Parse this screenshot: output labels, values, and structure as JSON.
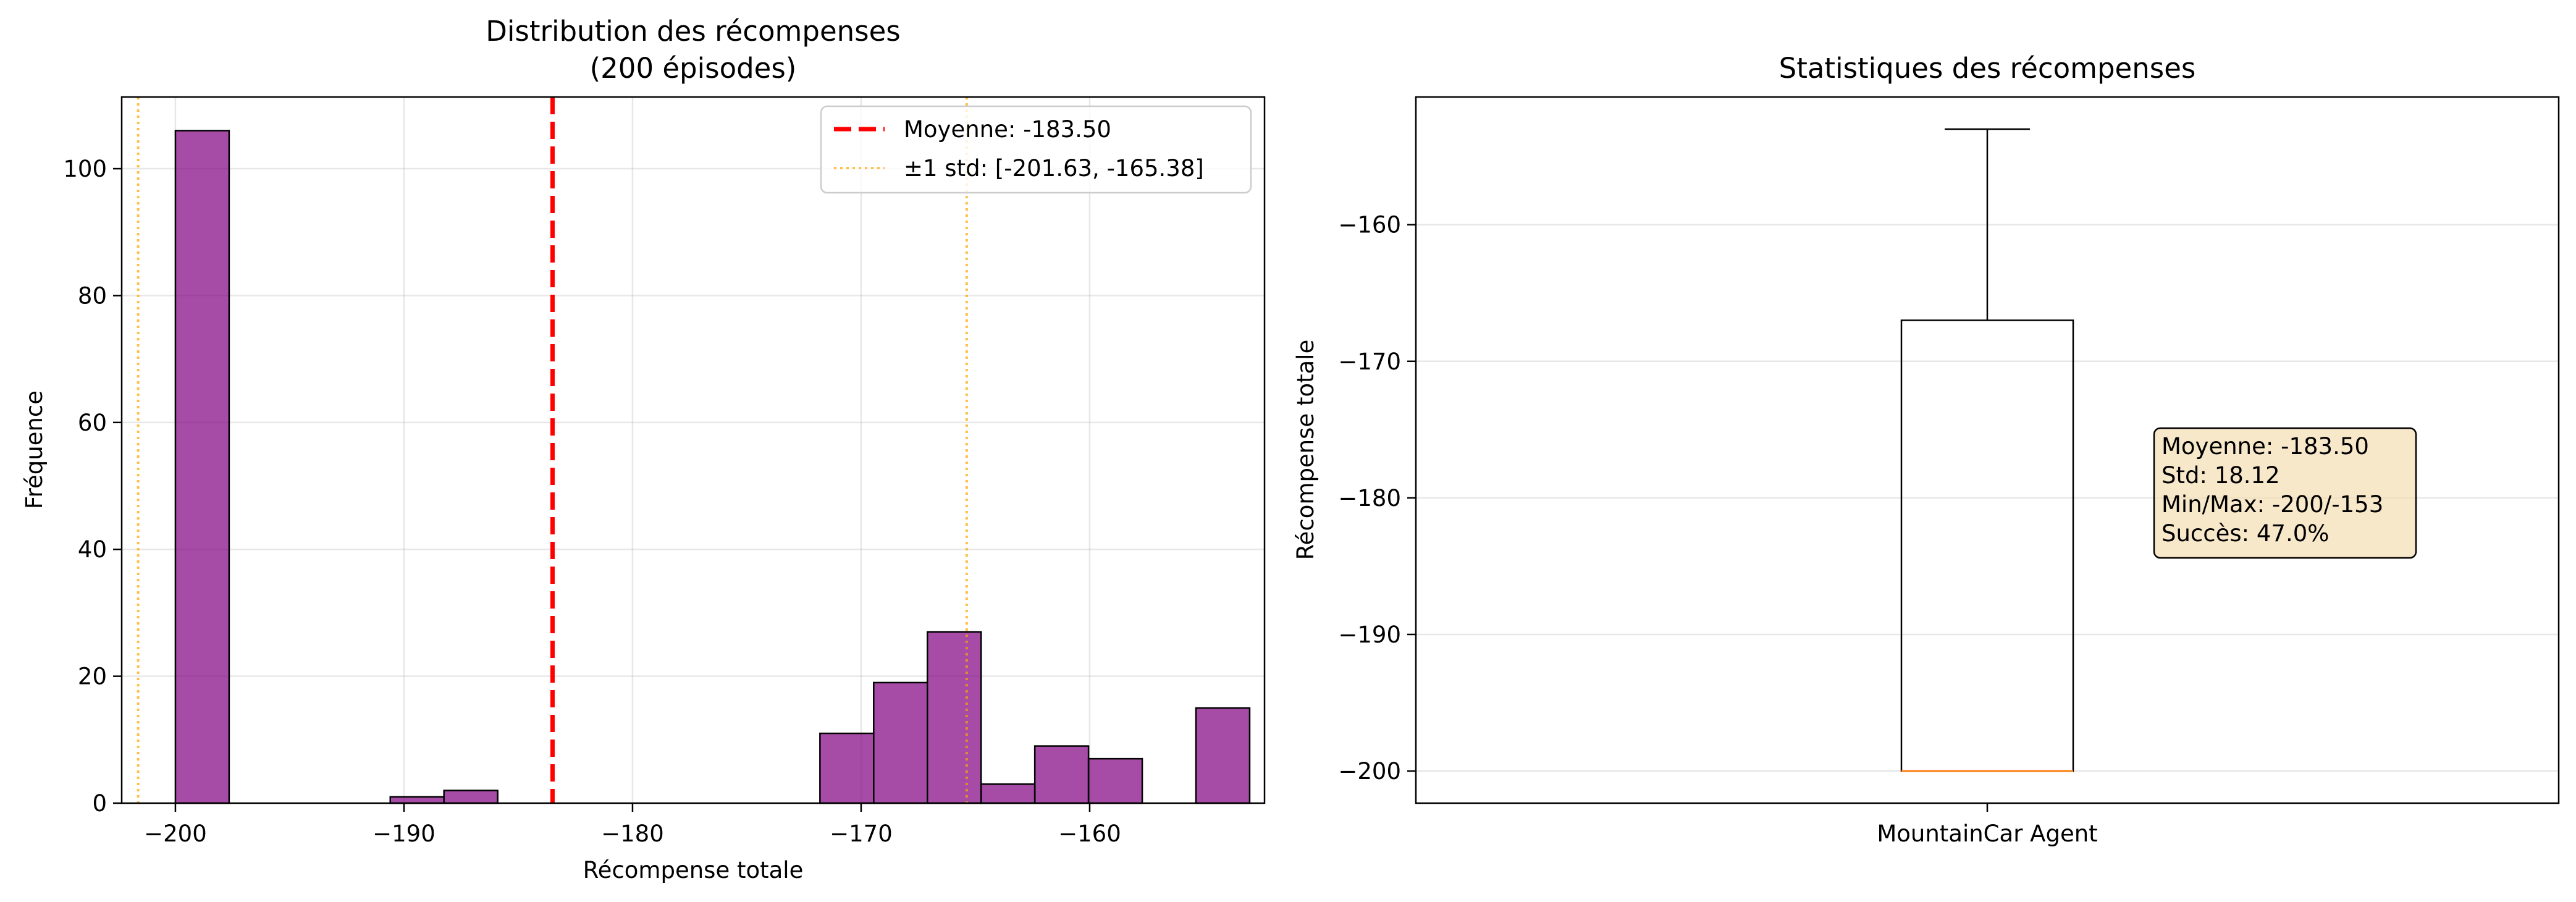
{
  "chart_data": [
    {
      "type": "bar",
      "subtype": "histogram",
      "title_line1": "Distribution des récompenses",
      "title_line2": "(200 épisodes)",
      "xlabel": "Récompense totale",
      "ylabel": "Fréquence",
      "xlim": [
        -202.35,
        -152.35
      ],
      "ylim": [
        0,
        111.3
      ],
      "xticks": [
        -200,
        -190,
        -180,
        -170,
        -160
      ],
      "xtick_labels": [
        "−200",
        "−190",
        "−180",
        "−170",
        "−160"
      ],
      "yticks": [
        0,
        20,
        40,
        60,
        80,
        100
      ],
      "ytick_labels": [
        "0",
        "20",
        "40",
        "60",
        "80",
        "100"
      ],
      "grid": true,
      "legend_position": "top-right",
      "bar_color": "#800080",
      "bins": [
        {
          "x0": -200.0,
          "x1": -197.65,
          "count": 106
        },
        {
          "x0": -197.65,
          "x1": -195.3,
          "count": 0
        },
        {
          "x0": -195.3,
          "x1": -192.95,
          "count": 0
        },
        {
          "x0": -192.95,
          "x1": -190.6,
          "count": 0
        },
        {
          "x0": -190.6,
          "x1": -188.25,
          "count": 1
        },
        {
          "x0": -188.25,
          "x1": -185.9,
          "count": 2
        },
        {
          "x0": -185.9,
          "x1": -183.55,
          "count": 0
        },
        {
          "x0": -183.55,
          "x1": -181.2,
          "count": 0
        },
        {
          "x0": -181.2,
          "x1": -178.85,
          "count": 0
        },
        {
          "x0": -178.85,
          "x1": -176.5,
          "count": 0
        },
        {
          "x0": -176.5,
          "x1": -174.15,
          "count": 0
        },
        {
          "x0": -174.15,
          "x1": -171.8,
          "count": 0
        },
        {
          "x0": -171.8,
          "x1": -169.45,
          "count": 11
        },
        {
          "x0": -169.45,
          "x1": -167.1,
          "count": 19
        },
        {
          "x0": -167.1,
          "x1": -164.75,
          "count": 27
        },
        {
          "x0": -164.75,
          "x1": -162.4,
          "count": 3
        },
        {
          "x0": -162.4,
          "x1": -160.05,
          "count": 9
        },
        {
          "x0": -160.05,
          "x1": -157.7,
          "count": 7
        },
        {
          "x0": -157.7,
          "x1": -155.35,
          "count": 0
        },
        {
          "x0": -155.35,
          "x1": -153.0,
          "count": 15
        }
      ],
      "mean": -183.5,
      "std_range": [
        -201.63,
        -165.38
      ],
      "legend": [
        {
          "label": "Moyenne: -183.50",
          "color": "#ff0000",
          "style": "dashed"
        },
        {
          "label": "±1 std: [-201.63, -165.38]",
          "color": "#ffa500",
          "style": "dotted"
        }
      ]
    },
    {
      "type": "boxplot",
      "title": "Statistiques des récompenses",
      "xlabel": "",
      "ylabel": "Récompense totale",
      "ylim": [
        -202.35,
        -150.65
      ],
      "yticks": [
        -200,
        -190,
        -180,
        -170,
        -160
      ],
      "ytick_labels": [
        "−200",
        "−190",
        "−180",
        "−170",
        "−160"
      ],
      "xtick_labels": [
        "MountainCar Agent"
      ],
      "grid": true,
      "box": {
        "q1": -200,
        "median": -200,
        "q3": -167,
        "whisker_low": -200,
        "whisker_high": -153
      },
      "median_color": "#ff7f0e",
      "stats_box": {
        "lines": [
          "Moyenne: -183.50",
          "Std: 18.12",
          "Min/Max: -200/-153",
          "Succès: 47.0%"
        ],
        "background": "#f5deb3"
      }
    }
  ]
}
